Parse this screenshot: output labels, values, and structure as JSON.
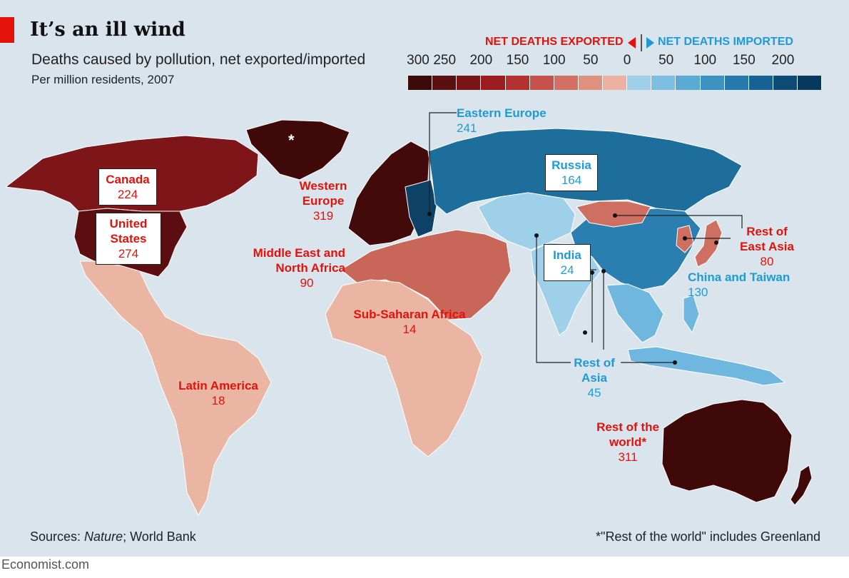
{
  "header": {
    "title": "It’s an ill wind",
    "subtitle": "Deaths caused by pollution, net exported/imported",
    "subtitle2": "Per million residents, 2007"
  },
  "legend": {
    "exported_label": "NET DEATHS EXPORTED",
    "imported_label": "NET DEATHS IMPORTED",
    "ticks": [
      "300",
      "250",
      "200",
      "150",
      "100",
      "50",
      "0",
      "50",
      "100",
      "150",
      "200"
    ],
    "exported_colors": [
      "#3d0a0a",
      "#5a0f10",
      "#7a1416",
      "#9a1c1e",
      "#b33230",
      "#c5514b",
      "#d36f63",
      "#e0907f",
      "#ebb09f"
    ],
    "imported_colors": [
      "#9fd0ea",
      "#7dbfe0",
      "#5aabd3",
      "#3c93c2",
      "#2679ab",
      "#176092",
      "#0e4a76",
      "#07385d"
    ]
  },
  "regions": {
    "canada": {
      "name": "Canada",
      "value": "224",
      "color": "#7e1518"
    },
    "united_states": {
      "name": "United States",
      "value": "274",
      "color": "#5d0e10"
    },
    "western_europe": {
      "name": "Western Europe",
      "value": "319",
      "color": "#420a0b"
    },
    "eastern_europe": {
      "name": "Eastern Europe",
      "value": "241",
      "color": "#0d4166"
    },
    "russia": {
      "name": "Russia",
      "value": "164",
      "color": "#1d6e9a"
    },
    "middle_east": {
      "name": "Middle East and North Africa",
      "value": "90",
      "color": "#c9665a"
    },
    "sub_saharan": {
      "name": "Sub-Saharan Africa",
      "value": "14",
      "color": "#eab5a2"
    },
    "latin_america": {
      "name": "Latin America",
      "value": "18",
      "color": "#eab5a2"
    },
    "india": {
      "name": "India",
      "value": "24",
      "color": "#9fd0ea"
    },
    "china": {
      "name": "China and Taiwan",
      "value": "130",
      "color": "#2a7fb0"
    },
    "rest_east_asia": {
      "name": "Rest of East Asia",
      "value": "80",
      "color": "#cf6f62"
    },
    "rest_asia": {
      "name": "Rest of Asia",
      "value": "45",
      "color": "#6fb7de"
    },
    "rest_world": {
      "name": "Rest of the world*",
      "value": "311",
      "color": "#3f090a"
    },
    "greenland_mark": "*"
  },
  "footer": {
    "sources_prefix": "Sources: ",
    "sources_italic": "Nature",
    "sources_suffix": "; World Bank",
    "footnote": "*\"Rest of the world\" includes Greenland",
    "brand": "Economist.com"
  }
}
